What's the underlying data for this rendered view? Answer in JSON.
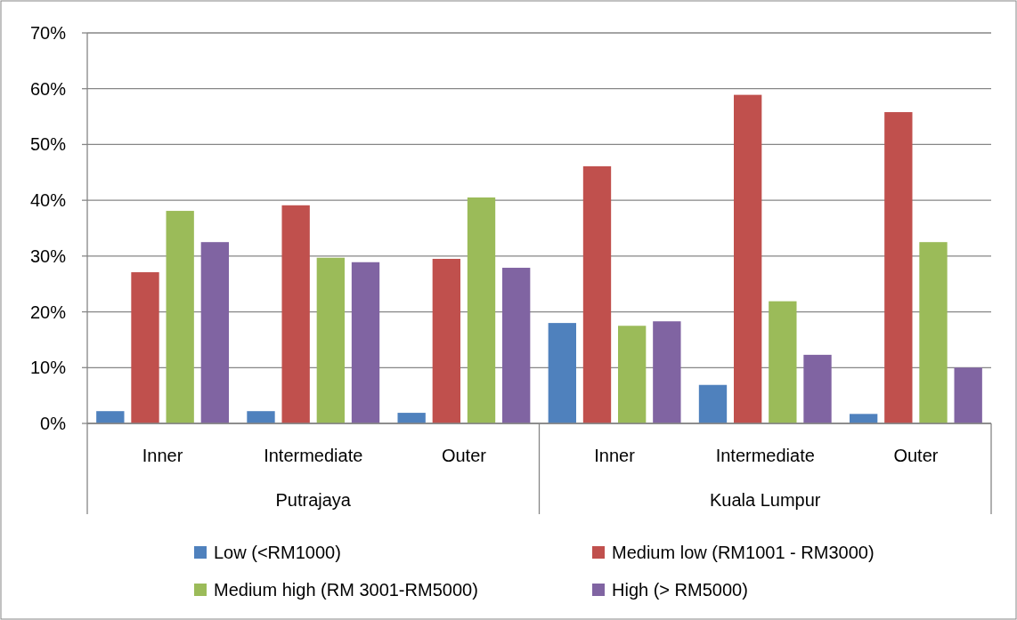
{
  "chart_data": {
    "type": "bar",
    "categories": [
      "Inner",
      "Intermediate",
      "Outer",
      "Inner",
      "Intermediate",
      "Outer"
    ],
    "annotations": [
      "Putrajaya",
      "Kuala Lumpur"
    ],
    "series": [
      {
        "name": "Low (<RM1000)",
        "color": "#4f81bd",
        "values": [
          2.2,
          2.2,
          1.9,
          18.0,
          6.9,
          1.7
        ]
      },
      {
        "name": "Medium low (RM1001 - RM3000)",
        "color": "#c0504d",
        "values": [
          27.1,
          39.1,
          29.5,
          46.1,
          58.9,
          55.8
        ]
      },
      {
        "name": "Medium high (RM 3001-RM5000)",
        "color": "#9bbb59",
        "values": [
          38.1,
          29.7,
          40.5,
          17.5,
          21.9,
          32.5
        ]
      },
      {
        "name": "High (> RM5000)",
        "color": "#8064a2",
        "values": [
          32.5,
          28.9,
          27.9,
          18.3,
          12.3,
          10.0
        ]
      }
    ],
    "ylim": [
      0,
      70
    ],
    "yticks": [
      {
        "value": 0,
        "label": "0%"
      },
      {
        "value": 10,
        "label": "10%"
      },
      {
        "value": 20,
        "label": "20%"
      },
      {
        "value": 30,
        "label": "30%"
      },
      {
        "value": 40,
        "label": "40%"
      },
      {
        "value": 50,
        "label": "50%"
      },
      {
        "value": 60,
        "label": "60%"
      },
      {
        "value": 70,
        "label": "70%"
      }
    ],
    "grid": "y",
    "legend": "bottom"
  }
}
